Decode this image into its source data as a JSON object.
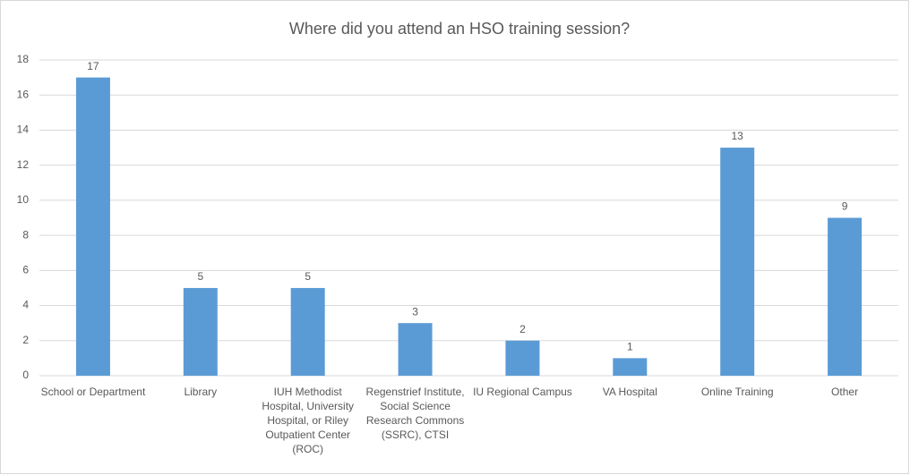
{
  "chart_data": {
    "type": "bar",
    "title": "Where did you attend an HSO training session?",
    "categories": [
      "School or Department",
      "Library",
      "IUH Methodist Hospital, University Hospital, or Riley Outpatient Center (ROC)",
      "Regenstrief Institute, Social Science Research Commons (SSRC), CTSI",
      "IU Regional Campus",
      "VA Hospital",
      "Online Training",
      "Other"
    ],
    "values": [
      17,
      5,
      5,
      3,
      2,
      1,
      13,
      9
    ],
    "color": "#5b9bd5",
    "ylim": [
      0,
      18
    ],
    "yticks": [
      0,
      2,
      4,
      6,
      8,
      10,
      12,
      14,
      16,
      18
    ],
    "grid": true
  }
}
